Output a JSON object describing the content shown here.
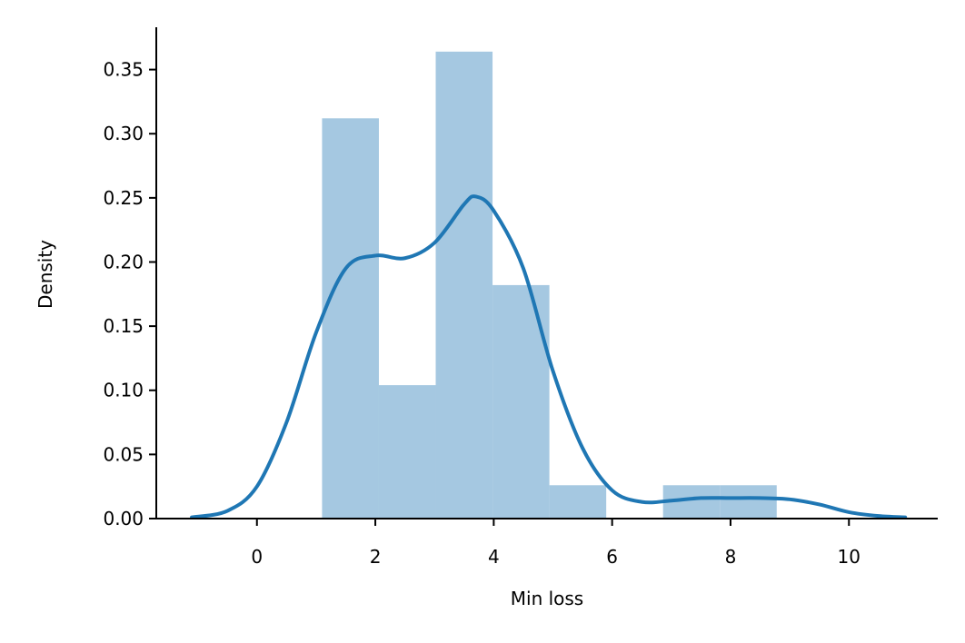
{
  "chart_data": {
    "type": "bar",
    "xlabel": "Min loss",
    "ylabel": "Density",
    "xlim": [
      -1.7,
      11.5
    ],
    "ylim": [
      0,
      0.383
    ],
    "x_ticks": [
      0,
      2,
      4,
      6,
      8,
      10
    ],
    "y_ticks": [
      0.0,
      0.05,
      0.1,
      0.15,
      0.2,
      0.25,
      0.3,
      0.35
    ],
    "histogram": {
      "bins": [
        {
          "x0": 1.1,
          "x1": 2.06,
          "density": 0.312
        },
        {
          "x0": 2.06,
          "x1": 3.02,
          "density": 0.104
        },
        {
          "x0": 3.02,
          "x1": 3.98,
          "density": 0.364
        },
        {
          "x0": 3.98,
          "x1": 4.94,
          "density": 0.182
        },
        {
          "x0": 4.94,
          "x1": 5.9,
          "density": 0.026
        },
        {
          "x0": 5.9,
          "x1": 6.86,
          "density": 0.0
        },
        {
          "x0": 6.86,
          "x1": 7.82,
          "density": 0.026
        },
        {
          "x0": 7.82,
          "x1": 8.78,
          "density": 0.026
        }
      ],
      "color": "#a5c8e1"
    },
    "kde": {
      "color": "#1f77b4",
      "x": [
        -1.1,
        -0.5,
        0,
        0.5,
        1.0,
        1.5,
        2.0,
        2.5,
        3.0,
        3.5,
        3.7,
        4.0,
        4.5,
        5.0,
        5.5,
        6.0,
        6.5,
        7.0,
        7.5,
        8.0,
        8.5,
        9.0,
        9.5,
        10.0,
        10.5,
        10.95
      ],
      "y": [
        0.001,
        0.006,
        0.025,
        0.075,
        0.145,
        0.195,
        0.205,
        0.203,
        0.215,
        0.245,
        0.251,
        0.24,
        0.195,
        0.115,
        0.055,
        0.022,
        0.013,
        0.014,
        0.016,
        0.016,
        0.016,
        0.015,
        0.011,
        0.005,
        0.002,
        0.001
      ]
    },
    "grid": false,
    "legend": "none"
  }
}
